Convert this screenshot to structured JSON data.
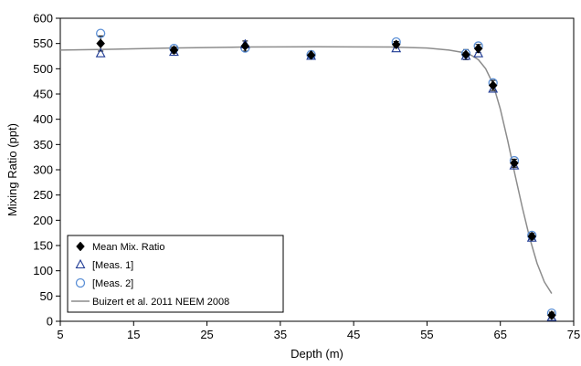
{
  "chart_data": {
    "type": "scatter",
    "title": "",
    "xlabel": "Depth (m)",
    "ylabel": "Mixing Ratio (ppt)",
    "xlim": [
      5,
      75
    ],
    "ylim": [
      0,
      600
    ],
    "xticks": [
      "5",
      "15",
      "25",
      "35",
      "45",
      "55",
      "65",
      "75"
    ],
    "yticks": [
      "0",
      "50",
      "100",
      "150",
      "200",
      "250",
      "300",
      "350",
      "400",
      "450",
      "500",
      "550",
      "600"
    ],
    "grid": false,
    "legend_position": "bottom-left",
    "series": [
      {
        "name": "Mean Mix. Ratio",
        "marker": "diamond",
        "color": "#000000",
        "x": [
          10.5,
          20.5,
          30.2,
          39.2,
          50.8,
          60.3,
          62.0,
          64.0,
          66.9,
          69.3,
          72.0
        ],
        "y": [
          550,
          537,
          545,
          527,
          548,
          528,
          540,
          467,
          313,
          168,
          12
        ],
        "err": [
          15,
          6,
          10,
          8,
          6,
          10,
          8,
          10,
          8,
          6,
          6
        ]
      },
      {
        "name": "[Meas. 1]",
        "marker": "triangle",
        "color": "#1f3a93",
        "x": [
          10.5,
          20.5,
          30.2,
          39.2,
          50.8,
          60.3,
          62.0,
          64.0,
          66.9,
          69.3,
          72.0
        ],
        "y": [
          530,
          533,
          548,
          525,
          540,
          525,
          530,
          460,
          308,
          165,
          8
        ],
        "err": []
      },
      {
        "name": "[Meas. 2]",
        "marker": "circle",
        "color": "#5b8fd6",
        "x": [
          10.5,
          20.5,
          30.2,
          39.2,
          50.8,
          60.3,
          62.0,
          64.0,
          66.9,
          69.3,
          72.0
        ],
        "y": [
          570,
          540,
          541,
          528,
          553,
          530,
          545,
          472,
          318,
          170,
          16
        ],
        "err": []
      },
      {
        "name": "Buizert et al. 2011 NEEM 2008",
        "marker": "line",
        "color": "#8c8c8c",
        "x": [
          5,
          10,
          20,
          30,
          40,
          50,
          55,
          58,
          60,
          61,
          62,
          63,
          64,
          65,
          66,
          67,
          68,
          69,
          70,
          71,
          72
        ],
        "y": [
          537,
          538,
          541,
          543,
          543.5,
          543,
          541,
          537,
          532,
          527,
          518,
          500,
          470,
          420,
          358,
          290,
          225,
          165,
          115,
          78,
          55
        ]
      }
    ]
  }
}
